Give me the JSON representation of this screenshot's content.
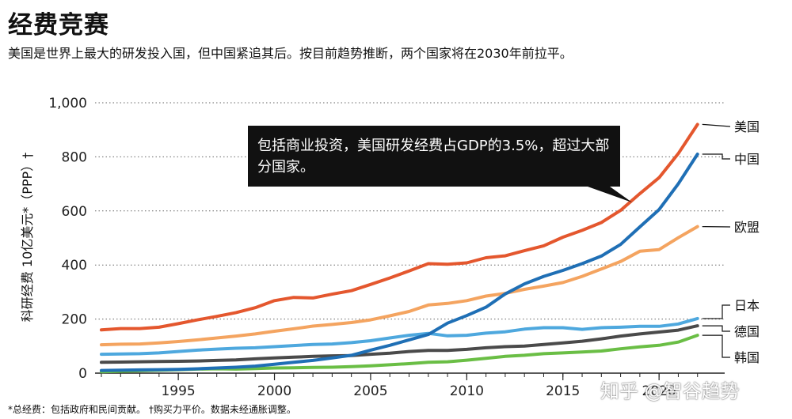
{
  "title": "经费竞赛",
  "subtitle": "美国是世界上最大的研发投入国，但中国紧追其后。按目前趋势推断，两个国家将在2030年前拉平。",
  "footnote": "*总经费：包括政府和民间贡献。    †购买力平价。数据未经通胀调整。",
  "watermark": "知乎 @智谷趋势",
  "callout": "包括商业投资，美国研发经费占GDP的3.5%，超过大部分国家。",
  "colors": {
    "us": "#e4572e",
    "china": "#1f6fb5",
    "eu": "#f4a460",
    "japan": "#4ea8de",
    "germany": "#4a4a4a",
    "korea": "#6abe45"
  },
  "chart_data": {
    "type": "line",
    "title": "经费竞赛",
    "ylabel": "科研经费 10亿美元*（PPP）†",
    "xlabel": "",
    "ylim": [
      0,
      1000
    ],
    "xlim": [
      1991,
      2023
    ],
    "yticks": [
      0,
      200,
      400,
      600,
      800,
      1000
    ],
    "ytick_labels": [
      "0",
      "200",
      "400",
      "600",
      "800",
      "1,000"
    ],
    "xticks": [
      1995,
      2000,
      2005,
      2010,
      2015,
      2020
    ],
    "xtick_labels": [
      "1995",
      "2000",
      "2005",
      "2010",
      "2015",
      "2020"
    ],
    "x": [
      1991,
      1992,
      1993,
      1994,
      1995,
      1996,
      1997,
      1998,
      1999,
      2000,
      2001,
      2002,
      2003,
      2004,
      2005,
      2006,
      2007,
      2008,
      2009,
      2010,
      2011,
      2012,
      2013,
      2014,
      2015,
      2016,
      2017,
      2018,
      2019,
      2020,
      2021,
      2022
    ],
    "series": [
      {
        "name": "美国",
        "key": "us",
        "values": [
          160,
          165,
          165,
          170,
          183,
          197,
          210,
          224,
          242,
          268,
          280,
          278,
          292,
          305,
          328,
          352,
          378,
          405,
          403,
          408,
          427,
          434,
          453,
          471,
          503,
          528,
          557,
          602,
          664,
          723,
          812,
          920
        ]
      },
      {
        "name": "中国",
        "key": "china",
        "values": [
          10,
          11,
          12,
          13,
          14,
          16,
          19,
          22,
          26,
          33,
          40,
          47,
          56,
          66,
          85,
          103,
          123,
          143,
          185,
          213,
          244,
          293,
          330,
          358,
          380,
          405,
          433,
          476,
          541,
          605,
          700,
          810
        ]
      },
      {
        "name": "欧盟",
        "key": "eu",
        "values": [
          105,
          107,
          108,
          112,
          117,
          123,
          130,
          137,
          145,
          155,
          164,
          174,
          180,
          187,
          197,
          212,
          228,
          252,
          258,
          268,
          285,
          295,
          310,
          322,
          335,
          358,
          385,
          413,
          451,
          457,
          501,
          542
        ]
      },
      {
        "name": "日本",
        "key": "japan",
        "values": [
          70,
          71,
          72,
          75,
          80,
          85,
          89,
          92,
          94,
          98,
          102,
          106,
          108,
          113,
          120,
          130,
          140,
          147,
          138,
          140,
          148,
          153,
          163,
          168,
          168,
          162,
          168,
          170,
          173,
          173,
          182,
          202
        ]
      },
      {
        "name": "德国",
        "key": "germany",
        "values": [
          40,
          41,
          42,
          43,
          44,
          45,
          47,
          49,
          53,
          56,
          59,
          62,
          64,
          65,
          70,
          74,
          80,
          84,
          84,
          88,
          94,
          98,
          100,
          106,
          112,
          118,
          127,
          137,
          145,
          152,
          159,
          175
        ]
      },
      {
        "name": "韩国",
        "key": "korea",
        "values": [
          5,
          7,
          9,
          11,
          13,
          15,
          16,
          15,
          17,
          19,
          20,
          21,
          22,
          24,
          27,
          31,
          35,
          40,
          42,
          48,
          55,
          62,
          66,
          72,
          75,
          78,
          82,
          90,
          97,
          103,
          115,
          140
        ]
      }
    ]
  }
}
